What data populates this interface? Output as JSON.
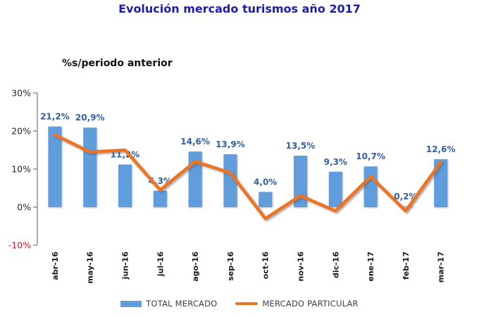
{
  "chart_data": {
    "type": "bar+line",
    "title": "Evolución mercado turismos año 2017",
    "subtitle": "%s/periodo anterior",
    "categories": [
      "abr-16",
      "may-16",
      "jun-16",
      "jul-16",
      "ago-16",
      "sep-16",
      "oct-16",
      "nov-16",
      "dic-16",
      "ene-17",
      "feb-17",
      "mar-17"
    ],
    "bar_series": {
      "name": "TOTAL MERCADO",
      "color": "#5F9DDC",
      "values": [
        21.2,
        20.9,
        11.2,
        4.3,
        14.6,
        13.9,
        4.0,
        13.5,
        9.3,
        10.7,
        0.2,
        12.6
      ],
      "value_labels": [
        "21,2%",
        "20,9%",
        "11,2%",
        "4,3%",
        "14,6%",
        "13,9%",
        "4,0%",
        "13,5%",
        "9,3%",
        "10,7%",
        "0,2%",
        "12,6%"
      ]
    },
    "line_series": {
      "name": "MERCADO PARTICULAR",
      "color": "#EE7423",
      "values_estimated": [
        19,
        14.5,
        15,
        4.5,
        12,
        9,
        -3,
        3,
        -1,
        8,
        -1,
        11.8
      ]
    },
    "yticks": [
      {
        "label": "30%",
        "value": 30,
        "color": "#262626"
      },
      {
        "label": "20%",
        "value": 20,
        "color": "#262626"
      },
      {
        "label": "10%",
        "value": 10,
        "color": "#262626"
      },
      {
        "label": "0%",
        "value": 0,
        "color": "#262626"
      },
      {
        "label": "-10%",
        "value": -10,
        "color": "#E81123"
      }
    ],
    "ylim": [
      -10,
      30
    ],
    "grid": false,
    "legend_position": "bottom"
  },
  "colors": {
    "title": "#1C1CB0",
    "data_label": "#305F9E",
    "axis": "#595959",
    "x_label": "#1A1A1A",
    "legend_text": "#3F3F3F",
    "background": "#FFFFFF"
  }
}
